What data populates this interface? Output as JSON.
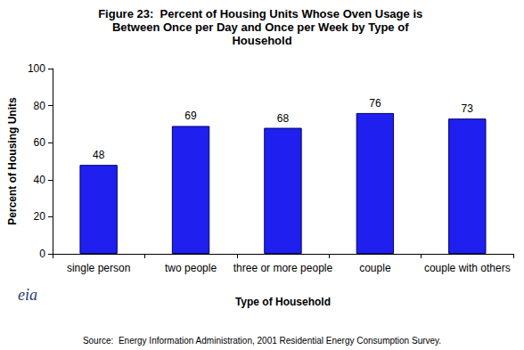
{
  "chart_data": {
    "type": "bar",
    "title": "Figure 23:  Percent of Housing Units Whose Oven Usage is Between Once per Day and Once per Week by Type of Household",
    "x_label": "Type of Household",
    "y_label": "Percent of Housing Units",
    "source": "Source:  Energy Information Administration, 2001 Residential Energy Consumption Survey.",
    "annotations": [
      "eia"
    ],
    "categories": [
      "single person",
      "two people",
      "three or more people",
      "couple",
      "couple with others"
    ],
    "values": [
      48,
      69,
      68,
      76,
      73
    ],
    "color": "#1f1ff0",
    "ylim": [
      0,
      100
    ],
    "yticks": [
      0,
      20,
      40,
      60,
      80,
      100
    ],
    "grid": false,
    "data_labels": true
  }
}
